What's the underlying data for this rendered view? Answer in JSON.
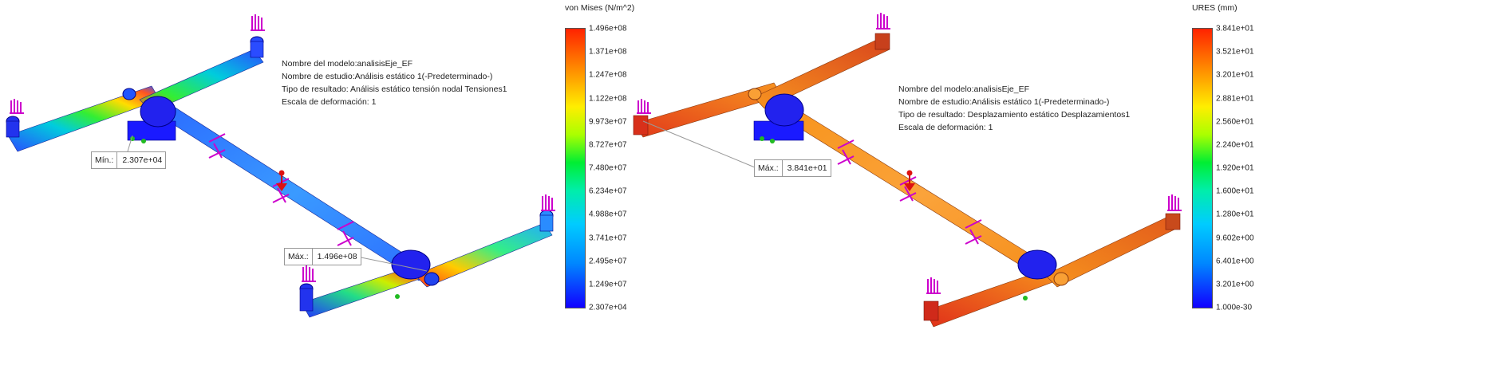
{
  "left_panel": {
    "info": {
      "model": "Nombre del modelo:analisisEje_EF",
      "study": "Nombre de estudio:Análisis estático 1(-Predeterminado-)",
      "result": "Tipo de resultado: Análisis estático tensión nodal Tensiones1",
      "scale": "Escala de deformación: 1"
    },
    "legend": {
      "title": "von Mises (N/m^2)",
      "labels": [
        "1.496e+08",
        "1.371e+08",
        "1.247e+08",
        "1.122e+08",
        "9.973e+07",
        "8.727e+07",
        "7.480e+07",
        "6.234e+07",
        "4.988e+07",
        "3.741e+07",
        "2.495e+07",
        "1.249e+07",
        "2.307e+04"
      ]
    },
    "min_callout": {
      "label": "Mín.:",
      "value": "2.307e+04"
    },
    "max_callout": {
      "label": "Máx.:",
      "value": "1.496e+08"
    }
  },
  "right_panel": {
    "info": {
      "model": "Nombre del modelo:analisisEje_EF",
      "study": "Nombre de estudio:Análisis estático 1(-Predeterminado-)",
      "result": "Tipo de resultado: Desplazamiento estático Desplazamientos1",
      "scale": "Escala de deformación: 1"
    },
    "legend": {
      "title": "URES (mm)",
      "labels": [
        "3.841e+01",
        "3.521e+01",
        "3.201e+01",
        "2.881e+01",
        "2.560e+01",
        "2.240e+01",
        "1.920e+01",
        "1.600e+01",
        "1.280e+01",
        "9.602e+00",
        "6.401e+00",
        "3.201e+00",
        "1.000e-30"
      ]
    },
    "max_callout": {
      "label": "Máx.:",
      "value": "3.841e+01"
    }
  },
  "colors": {
    "blue": "#1a1aff",
    "orange": "#f7941d",
    "red": "#e8401c",
    "fixture": "#cc00cc",
    "green": "#22bb22"
  }
}
